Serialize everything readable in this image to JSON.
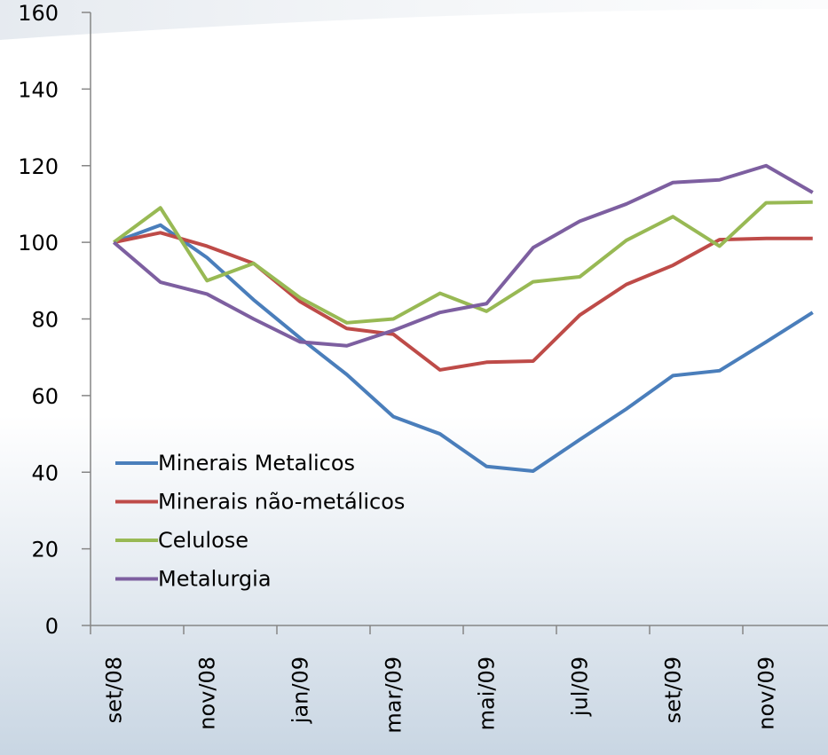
{
  "chart_data": {
    "type": "line",
    "categories": [
      "set/08",
      null,
      "nov/08",
      null,
      "jan/09",
      null,
      "mar/09",
      null,
      "mai/09",
      null,
      "jul/09",
      null,
      "set/09",
      null,
      "nov/09",
      null
    ],
    "series": [
      {
        "name": "Minerais Metalicos",
        "color": "#4a7ebb",
        "values": [
          100,
          104.5,
          96,
          85,
          75,
          65.5,
          54.5,
          50,
          41.5,
          40.3,
          48.5,
          56.5,
          65.2,
          66.5,
          74,
          81.7
        ]
      },
      {
        "name": "Minerais não-metálicos",
        "color": "#be4b48",
        "values": [
          100,
          102.5,
          99,
          94.5,
          84.5,
          77.5,
          76,
          66.7,
          68.7,
          69,
          81,
          89,
          94,
          100.7,
          101,
          101
        ]
      },
      {
        "name": "Celulose",
        "color": "#98b954",
        "values": [
          100,
          109,
          90,
          94.5,
          85.5,
          79,
          80,
          86.7,
          82,
          89.7,
          91,
          100.5,
          106.7,
          99,
          110.3,
          110.5
        ]
      },
      {
        "name": "Metalurgia",
        "color": "#7d5fa0",
        "values": [
          100,
          89.6,
          86.5,
          80,
          74,
          73,
          77,
          81.7,
          84,
          98.6,
          105.5,
          110,
          115.6,
          116.3,
          120,
          113
        ]
      }
    ],
    "ylim": [
      0,
      160
    ],
    "yticks": [
      0,
      20,
      40,
      60,
      80,
      100,
      120,
      140,
      160
    ],
    "legend": "lower left"
  }
}
